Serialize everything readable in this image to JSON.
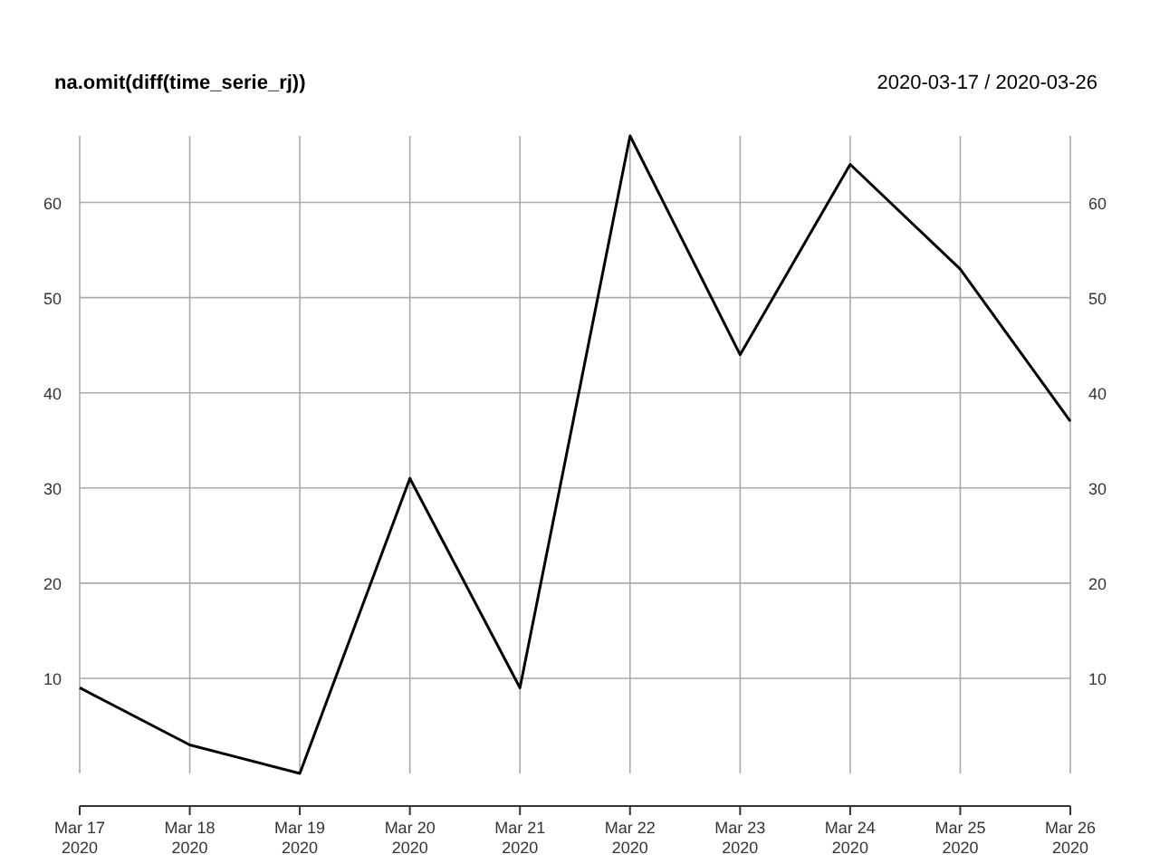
{
  "chart_data": {
    "type": "line",
    "title": "na.omit(diff(time_serie_rj))",
    "subtitle": "2020-03-17 / 2020-03-26",
    "x": [
      "2020-03-17",
      "2020-03-18",
      "2020-03-19",
      "2020-03-20",
      "2020-03-21",
      "2020-03-22",
      "2020-03-23",
      "2020-03-24",
      "2020-03-25",
      "2020-03-26"
    ],
    "series": [
      {
        "color": "#000000",
        "values": [
          9,
          3,
          0,
          31,
          9,
          67,
          44,
          64,
          53,
          37
        ]
      }
    ],
    "xlim": [
      "2020-03-17",
      "2020-03-26"
    ],
    "xticks": [
      {
        "value": "2020-03-17",
        "label": "Mar 17\n2020"
      },
      {
        "value": "2020-03-18",
        "label": "Mar 18\n2020"
      },
      {
        "value": "2020-03-19",
        "label": "Mar 19\n2020"
      },
      {
        "value": "2020-03-20",
        "label": "Mar 20\n2020"
      },
      {
        "value": "2020-03-21",
        "label": "Mar 21\n2020"
      },
      {
        "value": "2020-03-22",
        "label": "Mar 22\n2020"
      },
      {
        "value": "2020-03-23",
        "label": "Mar 23\n2020"
      },
      {
        "value": "2020-03-24",
        "label": "Mar 24\n2020"
      },
      {
        "value": "2020-03-25",
        "label": "Mar 25\n2020"
      },
      {
        "value": "2020-03-26",
        "label": "Mar 26\n2020"
      }
    ],
    "ylim": [
      0,
      67
    ],
    "yticks": [
      10,
      20,
      30,
      40,
      50,
      60
    ],
    "y2lim": [
      0,
      67
    ],
    "y2ticks": [
      10,
      20,
      30,
      40,
      50,
      60
    ],
    "grid": true,
    "line_style": "solid"
  }
}
